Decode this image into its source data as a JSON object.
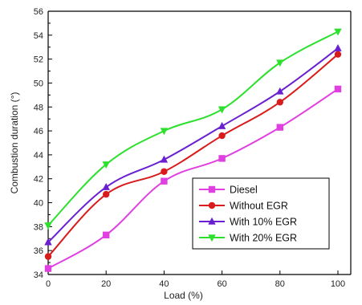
{
  "chart_data": {
    "type": "line",
    "xlabel": "Load (%)",
    "ylabel": "Combustion duration (°)",
    "xlim": [
      0,
      100
    ],
    "ylim": [
      34,
      56
    ],
    "x_ticks": [
      0,
      20,
      40,
      60,
      80,
      100
    ],
    "y_ticks": [
      34,
      36,
      38,
      40,
      42,
      44,
      46,
      48,
      50,
      52,
      54,
      56
    ],
    "x": [
      0,
      20,
      40,
      60,
      80,
      100
    ],
    "legend_position": "bottom-right",
    "grid": false,
    "series": [
      {
        "name": "Diesel",
        "color": "#e040e0",
        "marker": "square",
        "values": [
          34.5,
          37.3,
          41.8,
          43.7,
          46.3,
          49.5
        ]
      },
      {
        "name": "Without EGR",
        "color": "#d81b1b",
        "marker": "circle",
        "values": [
          35.5,
          40.7,
          42.6,
          45.6,
          48.4,
          52.4
        ]
      },
      {
        "name": "With 10% EGR",
        "color": "#6a1fd0",
        "marker": "triangle-up",
        "values": [
          36.7,
          41.3,
          43.6,
          46.4,
          49.3,
          52.9
        ]
      },
      {
        "name": "With 20% EGR",
        "color": "#2ee02e",
        "marker": "triangle-down",
        "values": [
          38.1,
          43.2,
          46.0,
          47.8,
          51.7,
          54.3
        ]
      }
    ]
  }
}
